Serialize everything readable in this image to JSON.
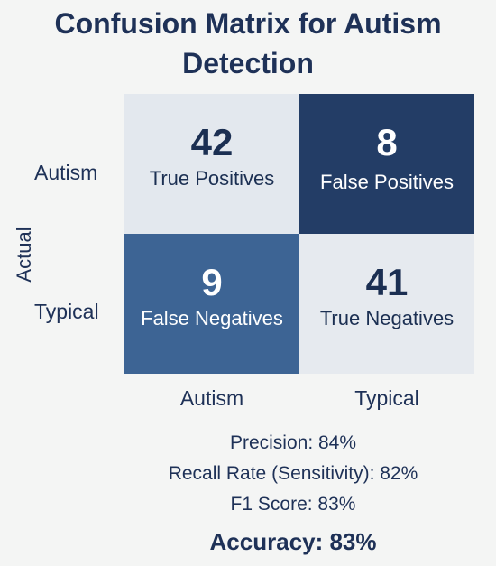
{
  "chart_data": {
    "type": "heatmap",
    "title": "Confusion Matrix for Autism Detection",
    "ylabel": "Actual",
    "xlabel": "",
    "row_labels": [
      "Autism",
      "Typical"
    ],
    "col_labels": [
      "Autism",
      "Typical"
    ],
    "cells": [
      [
        {
          "value": "42",
          "label": "True Positives",
          "color": "#e3e8ee"
        },
        {
          "value": "8",
          "label": "False Positives",
          "color": "#233d66"
        }
      ],
      [
        {
          "value": "9",
          "label": "False Negatives",
          "color": "#3d6494"
        },
        {
          "value": "41",
          "label": "True Negatives",
          "color": "#e6eaef"
        }
      ]
    ]
  },
  "metrics": {
    "precision": "Precision: 84%",
    "recall": "Recall Rate (Sensitivity): 82%",
    "f1": "F1 Score: 83%",
    "accuracy": "Accuracy: 83%"
  }
}
